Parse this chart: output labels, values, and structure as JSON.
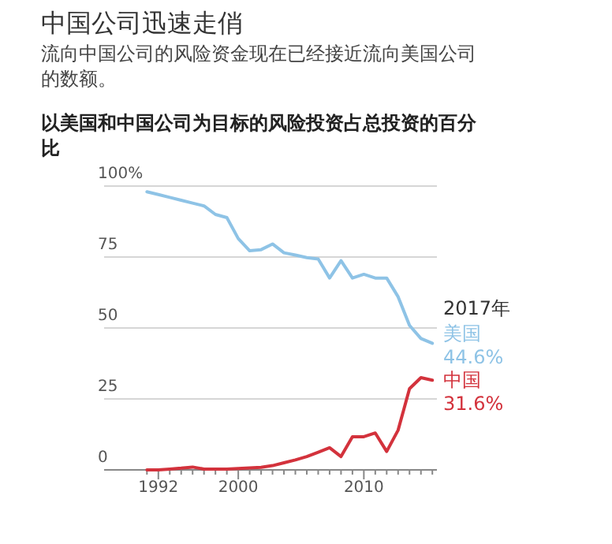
{
  "chart_data": {
    "type": "line",
    "title": "中国公司迅速走俏",
    "subtitle": "流向中国公司的风险资金现在已经接近流向美国公司的数额。",
    "ylabel": "以美国和中国公司为目标的风险投资占总投资的百分比",
    "categories": [
      null,
      "1992",
      null,
      null,
      null,
      null,
      null,
      null,
      "2000",
      null,
      null,
      null,
      null,
      null,
      null,
      null,
      null,
      null,
      null,
      "2010",
      null,
      null,
      null,
      null,
      null,
      null
    ],
    "series": [
      {
        "name": "美国",
        "color": "#8ec3e6",
        "values": [
          98,
          97,
          96,
          95,
          94,
          93,
          90,
          88.9,
          81.5,
          77.2,
          77.6,
          79.6,
          76.5,
          75.7,
          74.8,
          74.3,
          67.6,
          73.7,
          67.6,
          68.9,
          67.6,
          67.6,
          61,
          50.9,
          46.3,
          44.6
        ],
        "value_labels": [
          null,
          null,
          null,
          null,
          null,
          null,
          null,
          null,
          null,
          null,
          null,
          null,
          null,
          null,
          null,
          null,
          null,
          null,
          null,
          null,
          null,
          null,
          null,
          null,
          null,
          "44.6%"
        ]
      },
      {
        "name": "中国",
        "color": "#d3323c",
        "values": [
          0,
          0,
          0.3,
          0.6,
          1,
          0.3,
          0.3,
          0.3,
          0.5,
          0.7,
          0.9,
          1.5,
          2.5,
          3.5,
          4.7,
          6.2,
          7.8,
          4.7,
          11.7,
          11.7,
          13,
          6.5,
          14,
          28.6,
          32.5,
          31.6
        ],
        "value_labels": [
          null,
          null,
          null,
          null,
          null,
          null,
          null,
          null,
          null,
          null,
          null,
          null,
          null,
          null,
          null,
          null,
          null,
          null,
          null,
          null,
          null,
          null,
          null,
          null,
          null,
          "31.6%"
        ]
      }
    ],
    "annotations": [
      "2017年"
    ],
    "ylim": [
      0,
      100
    ],
    "yticks": [
      0,
      25,
      50,
      {
        "value": 100,
        "label": "100%"
      },
      75
    ],
    "grid": "y",
    "marker": "none",
    "line_style": "solid"
  }
}
